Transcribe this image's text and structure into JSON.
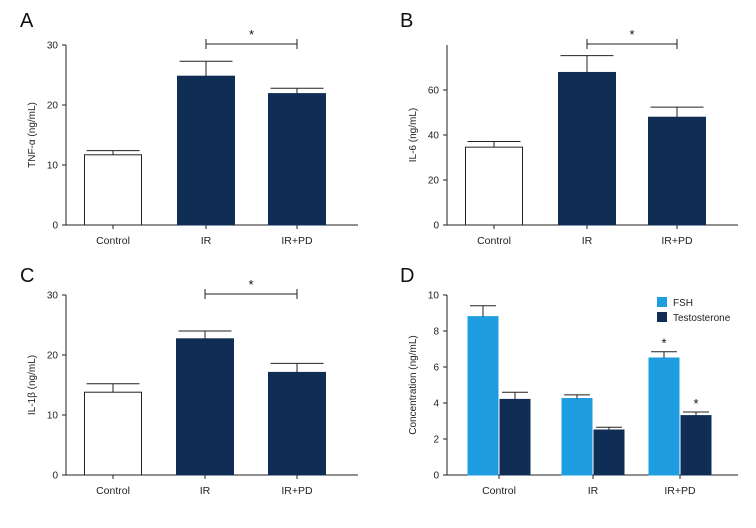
{
  "colors": {
    "light_blue": "#1e9ee0",
    "navy": "#0f2d55",
    "white": "#ffffff"
  },
  "chart_data": [
    {
      "id": "A",
      "letter": "A",
      "type": "bar",
      "categories": [
        "Control",
        "IR",
        "IR+PD"
      ],
      "values": [
        11.7,
        24.8,
        21.9
      ],
      "errors": [
        0.7,
        2.5,
        0.9
      ],
      "fills": [
        "white",
        "navy",
        "navy"
      ],
      "ylabel": "TNF-α (ng/mL)",
      "ylim": [
        0,
        30
      ],
      "yticks": [
        0,
        10,
        20,
        30
      ],
      "significance": {
        "from": 1,
        "to": 2,
        "label": "*"
      }
    },
    {
      "id": "B",
      "letter": "B",
      "type": "bar",
      "categories": [
        "Control",
        "IR",
        "IR+PD"
      ],
      "values": [
        34.6,
        67.8,
        47.9
      ],
      "errors": [
        2.5,
        7.5,
        4.5
      ],
      "fills": [
        "white",
        "navy",
        "navy"
      ],
      "ylabel": "IL-6 (ng/mL)",
      "ylim": [
        0,
        80
      ],
      "yticks": [
        0,
        20,
        40,
        60
      ],
      "significance": {
        "from": 1,
        "to": 2,
        "label": "*"
      }
    },
    {
      "id": "C",
      "letter": "C",
      "type": "bar",
      "categories": [
        "Control",
        "IR",
        "IR+PD"
      ],
      "values": [
        13.8,
        22.7,
        17.1
      ],
      "errors": [
        1.4,
        1.3,
        1.5
      ],
      "fills": [
        "white",
        "navy",
        "navy"
      ],
      "ylabel": "IL-1β (ng/mL)",
      "ylim": [
        0,
        30
      ],
      "yticks": [
        0,
        10,
        20,
        30
      ],
      "significance": {
        "from": 1,
        "to": 2,
        "label": "*"
      }
    },
    {
      "id": "D",
      "letter": "D",
      "type": "bar",
      "categories": [
        "Control",
        "IR",
        "IR+PD"
      ],
      "series": [
        {
          "name": "FSH",
          "color": "light_blue",
          "values": [
            8.8,
            4.25,
            6.5
          ],
          "errors": [
            0.6,
            0.2,
            0.35
          ],
          "stars": [
            "",
            "",
            "*"
          ]
        },
        {
          "name": "Testosterone",
          "color": "navy",
          "values": [
            4.2,
            2.5,
            3.3
          ],
          "errors": [
            0.4,
            0.15,
            0.2
          ],
          "stars": [
            "",
            "",
            "*"
          ]
        }
      ],
      "ylabel": "Concentration (ng/mL)",
      "ylim": [
        0,
        10
      ],
      "yticks": [
        0,
        2,
        4,
        6,
        8,
        10
      ],
      "legend": "top-right"
    }
  ]
}
